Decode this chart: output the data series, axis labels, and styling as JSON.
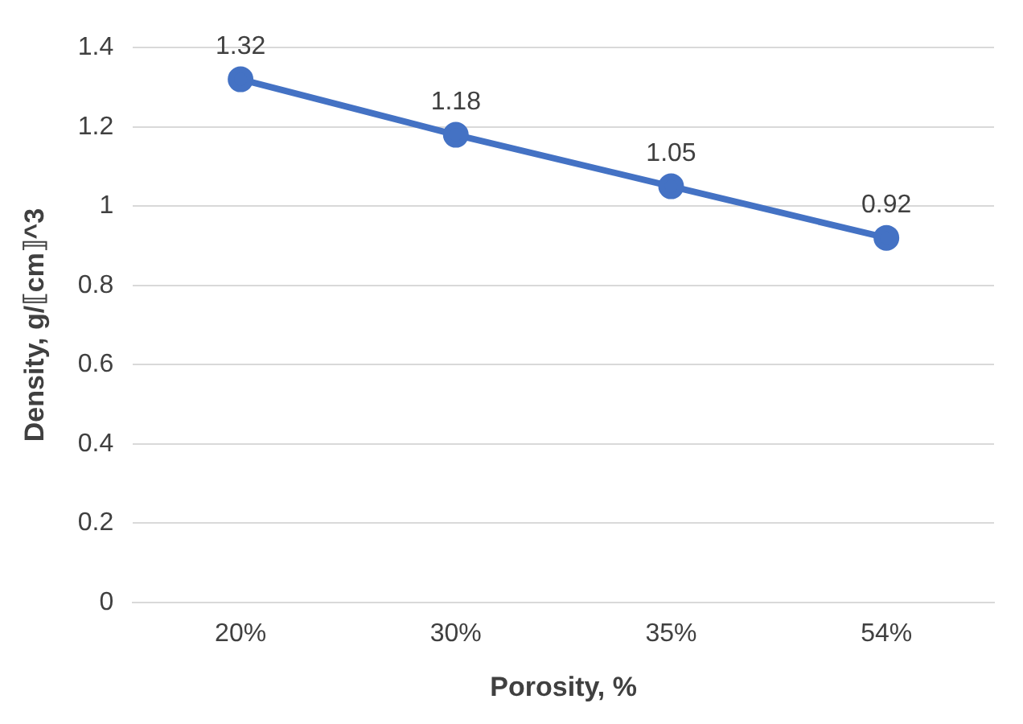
{
  "chart_data": {
    "type": "line",
    "xlabel": "Porosity, %",
    "ylabel": "Density, g/⟦cm⟧^3",
    "categories": [
      "20%",
      "30%",
      "35%",
      "54%"
    ],
    "series": [
      {
        "color": "#4472c4",
        "values": [
          1.32,
          1.18,
          1.05,
          0.92
        ]
      }
    ],
    "ylim": [
      0,
      1.4
    ],
    "yticks": [
      0,
      0.2,
      0.4,
      0.6,
      0.8,
      1,
      1.2,
      1.4
    ],
    "grid": "y",
    "legend": false,
    "marker": "circle",
    "line_style": "solid",
    "data_labels": true
  }
}
